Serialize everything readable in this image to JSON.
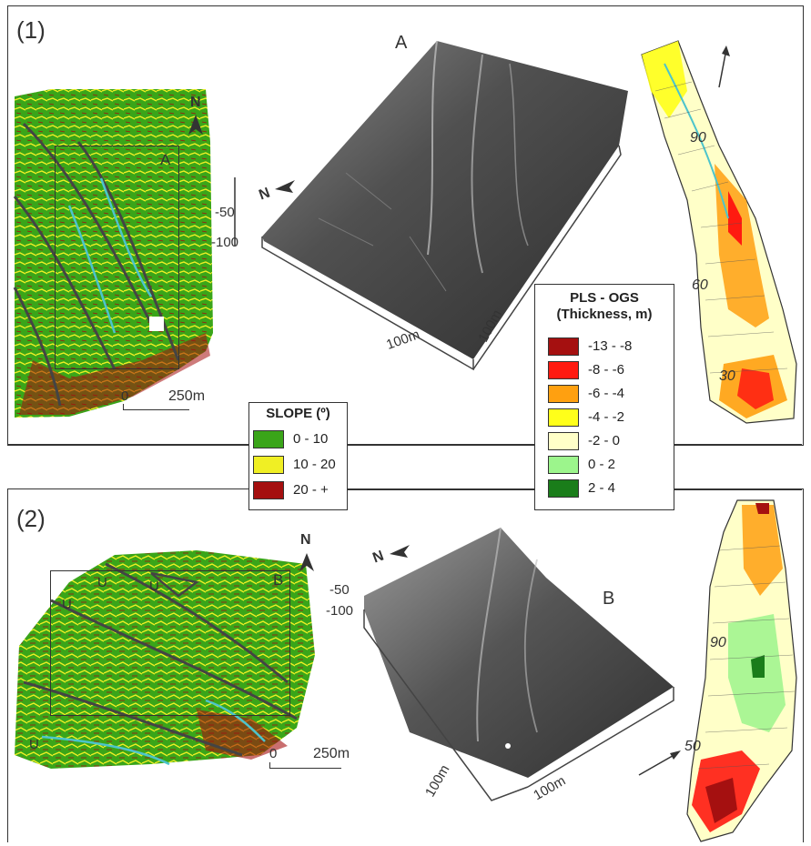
{
  "panels": [
    {
      "label": "(1)",
      "dem_label": "A",
      "map_box_label": "A",
      "north": "N",
      "scale": "250m",
      "axis_z": [
        "-50",
        "-100"
      ],
      "axis_x": "100m",
      "axis_y": "100m",
      "contours": [
        "90",
        "60",
        "30"
      ]
    },
    {
      "label": "(2)",
      "dem_label": "B",
      "map_box_label": "B",
      "north": "N",
      "scale": "250m",
      "axis_z": [
        "-50",
        "-100"
      ],
      "axis_x": "100m",
      "axis_y": "100m",
      "contours": [
        "90",
        "50"
      ],
      "map_marks": [
        "U",
        "U",
        "U",
        "U"
      ]
    }
  ],
  "slope_legend": {
    "title": "SLOPE (º)",
    "items": [
      {
        "label": "0 - 10",
        "color": "#3aa519"
      },
      {
        "label": "10 - 20",
        "color": "#f0ef24"
      },
      {
        "label": "20 - +",
        "color": "#a50f0f"
      }
    ]
  },
  "thickness_legend": {
    "title_line1": "PLS - OGS",
    "title_line2": "(Thickness, m)",
    "items": [
      {
        "label": "-13 - -8",
        "color": "#a51010"
      },
      {
        "label": "-8 - -6",
        "color": "#ff1a10"
      },
      {
        "label": "-6 - -4",
        "color": "#ffa010"
      },
      {
        "label": "-4 - -2",
        "color": "#ffff1a"
      },
      {
        "label": "-2 - 0",
        "color": "#ffffc8"
      },
      {
        "label": "0 - 2",
        "color": "#9cf58c"
      },
      {
        "label": "2 - 4",
        "color": "#1a7d1a"
      }
    ]
  }
}
